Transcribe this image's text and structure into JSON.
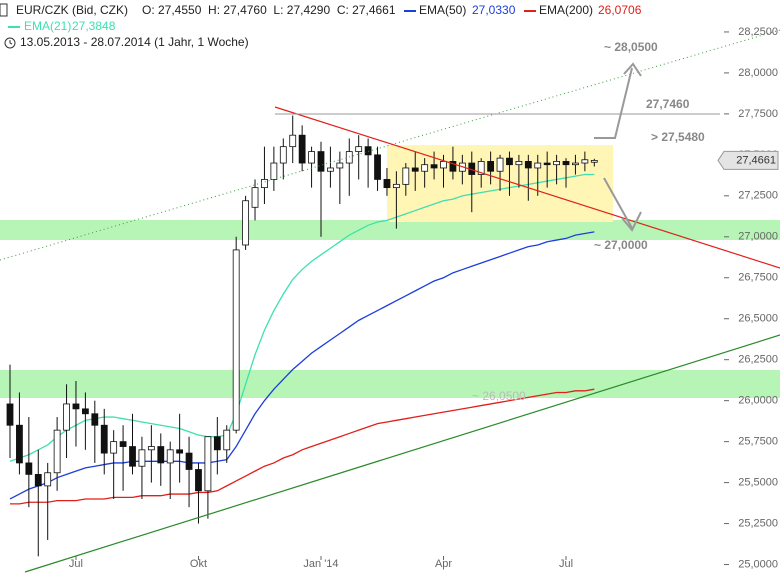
{
  "chart_data": {
    "type": "candlestick",
    "title": "EUR/CZK (Bid, CZK)",
    "ohlc_label": "O: 27,4550  H: 27,4760  L: 27,4290  C: 27,4661",
    "subtitle": "13.05.2013 - 28.07.2014 (1 Jahr, 1 Woche)",
    "categories": [
      null,
      null,
      null,
      null,
      null,
      null,
      null,
      "Jul",
      null,
      null,
      null,
      null,
      null,
      null,
      null,
      null,
      null,
      null,
      null,
      null,
      "Okt",
      null,
      null,
      null,
      null,
      null,
      null,
      null,
      null,
      null,
      null,
      null,
      null,
      "Jan '14",
      null,
      null,
      null,
      null,
      null,
      null,
      null,
      null,
      null,
      null,
      null,
      null,
      "Apr",
      null,
      null,
      null,
      null,
      null,
      null,
      null,
      null,
      null,
      null,
      null,
      null,
      "Jul",
      null,
      null,
      null
    ],
    "open": [
      25.98,
      25.85,
      25.62,
      25.55,
      25.48,
      25.56,
      25.82,
      25.98,
      25.95,
      25.92,
      25.85,
      25.68,
      25.75,
      25.72,
      25.6,
      25.7,
      25.72,
      25.62,
      25.7,
      25.68,
      25.58,
      25.45,
      25.78,
      25.7,
      25.82,
      26.95,
      27.18,
      27.3,
      27.35,
      27.45,
      27.55,
      27.62,
      27.45,
      27.52,
      27.4,
      27.42,
      27.45,
      27.52,
      27.55,
      27.5,
      27.35,
      27.3,
      27.32,
      27.42,
      27.4,
      27.44,
      27.42,
      27.46,
      27.4,
      27.45,
      27.38,
      27.46,
      27.4,
      27.48,
      27.44,
      27.46,
      27.42,
      27.45,
      27.44,
      27.46,
      27.44,
      27.45,
      27.455
    ],
    "high": [
      26.22,
      26.05,
      25.9,
      25.7,
      25.62,
      25.9,
      26.1,
      26.12,
      26.05,
      26.0,
      25.95,
      25.82,
      25.85,
      25.92,
      25.78,
      25.85,
      25.8,
      25.75,
      25.92,
      25.78,
      25.62,
      25.78,
      25.9,
      25.85,
      27.0,
      27.25,
      27.35,
      27.55,
      27.55,
      27.6,
      27.74,
      27.68,
      27.55,
      27.58,
      27.55,
      27.52,
      27.6,
      27.62,
      27.6,
      27.55,
      27.42,
      27.4,
      27.45,
      27.52,
      27.48,
      27.52,
      27.5,
      27.55,
      27.5,
      27.52,
      27.48,
      27.52,
      27.5,
      27.52,
      27.5,
      27.5,
      27.5,
      27.52,
      27.5,
      27.48,
      27.5,
      27.52,
      27.476
    ],
    "low": [
      25.65,
      25.55,
      25.35,
      25.05,
      25.15,
      25.45,
      25.65,
      25.72,
      25.7,
      25.62,
      25.55,
      25.4,
      25.45,
      25.55,
      25.4,
      25.5,
      25.48,
      25.4,
      25.5,
      25.35,
      25.25,
      25.28,
      25.55,
      25.62,
      25.8,
      26.92,
      27.1,
      27.2,
      27.28,
      27.35,
      27.45,
      27.4,
      27.3,
      27.0,
      27.3,
      27.2,
      27.25,
      27.35,
      27.3,
      27.28,
      27.25,
      27.05,
      27.25,
      27.28,
      27.3,
      27.35,
      27.3,
      27.35,
      27.32,
      27.15,
      27.3,
      27.32,
      27.28,
      27.25,
      27.3,
      27.22,
      27.25,
      27.3,
      27.32,
      27.3,
      27.38,
      27.4,
      27.429
    ],
    "close": [
      25.85,
      25.62,
      25.55,
      25.48,
      25.56,
      25.82,
      25.98,
      25.95,
      25.92,
      25.85,
      25.68,
      25.75,
      25.72,
      25.6,
      25.7,
      25.72,
      25.62,
      25.7,
      25.68,
      25.58,
      25.45,
      25.78,
      25.7,
      25.82,
      26.92,
      27.22,
      27.3,
      27.35,
      27.45,
      27.55,
      27.62,
      27.45,
      27.52,
      27.4,
      27.42,
      27.45,
      27.52,
      27.55,
      27.5,
      27.35,
      27.3,
      27.32,
      27.42,
      27.4,
      27.44,
      27.42,
      27.46,
      27.4,
      27.45,
      27.38,
      27.46,
      27.4,
      27.48,
      27.44,
      27.46,
      27.42,
      27.45,
      27.44,
      27.46,
      27.44,
      27.45,
      27.47,
      27.4661
    ],
    "last_price_label": "27,4661",
    "series": [
      {
        "name": "EMA(21)",
        "legend_value": "27,3848",
        "color": "#3fe0b0",
        "values": [
          25.63,
          25.65,
          25.67,
          25.7,
          25.73,
          25.78,
          25.82,
          25.85,
          25.88,
          25.89,
          25.9,
          25.9,
          25.89,
          25.88,
          25.87,
          25.86,
          25.85,
          25.84,
          25.83,
          25.81,
          25.79,
          25.78,
          25.78,
          25.79,
          25.92,
          26.1,
          26.28,
          26.43,
          26.55,
          26.65,
          26.74,
          26.8,
          26.85,
          26.89,
          26.93,
          26.97,
          27.01,
          27.04,
          27.07,
          27.09,
          27.1,
          27.12,
          27.14,
          27.16,
          27.18,
          27.2,
          27.22,
          27.23,
          27.25,
          27.26,
          27.27,
          27.28,
          27.29,
          27.3,
          27.31,
          27.32,
          27.33,
          27.34,
          27.35,
          27.36,
          27.37,
          27.38,
          27.38
        ]
      },
      {
        "name": "EMA(50)",
        "legend_value": "27,0330",
        "color": "#1c3fd8",
        "values": [
          25.4,
          25.43,
          25.46,
          25.48,
          25.5,
          25.53,
          25.55,
          25.57,
          25.59,
          25.6,
          25.61,
          25.62,
          25.62,
          25.63,
          25.63,
          25.63,
          25.63,
          25.63,
          25.63,
          25.62,
          25.62,
          25.62,
          25.63,
          25.64,
          25.72,
          25.82,
          25.92,
          26.0,
          26.07,
          26.13,
          26.19,
          26.24,
          26.29,
          26.33,
          26.37,
          26.41,
          26.45,
          26.49,
          26.52,
          26.55,
          26.58,
          26.61,
          26.64,
          26.67,
          26.7,
          26.73,
          26.75,
          26.78,
          26.8,
          26.82,
          26.84,
          26.86,
          26.88,
          26.9,
          26.92,
          26.94,
          26.95,
          26.97,
          26.98,
          26.99,
          27.01,
          27.02,
          27.03
        ]
      },
      {
        "name": "EMA(200)",
        "legend_value": "26,0706",
        "color": "#e0201a",
        "values": [
          25.37,
          25.37,
          25.38,
          25.38,
          25.38,
          25.39,
          25.39,
          25.39,
          25.4,
          25.4,
          25.4,
          25.41,
          25.41,
          25.41,
          25.42,
          25.42,
          25.42,
          25.43,
          25.43,
          25.43,
          25.44,
          25.44,
          25.45,
          25.48,
          25.51,
          25.54,
          25.57,
          25.6,
          25.62,
          25.65,
          25.67,
          25.7,
          25.72,
          25.74,
          25.76,
          25.78,
          25.8,
          25.82,
          25.84,
          25.86,
          25.87,
          25.88,
          25.89,
          25.9,
          25.91,
          25.92,
          25.93,
          25.94,
          25.95,
          25.96,
          25.97,
          25.98,
          25.99,
          26.0,
          26.01,
          26.02,
          26.03,
          26.04,
          26.05,
          26.05,
          26.06,
          26.06,
          26.07
        ]
      }
    ],
    "annotations": [
      "~ 28,0500",
      "27,7460",
      "> 27,5480",
      "~ 27,0000",
      "~ 26,0500"
    ],
    "ylim": [
      24.93,
      28.445
    ],
    "yticks": [
      {
        "value": 25,
        "label": "25,0000"
      },
      {
        "value": 25.25,
        "label": "25,2500"
      },
      {
        "value": 25.5,
        "label": "25,5000"
      },
      {
        "value": 25.75,
        "label": "25,7500"
      },
      {
        "value": 26,
        "label": "26,0000"
      },
      {
        "value": 26.25,
        "label": "26,2500"
      },
      {
        "value": 26.5,
        "label": "26,5000"
      },
      {
        "value": 26.75,
        "label": "26,7500"
      },
      {
        "value": 27,
        "label": "27,0000"
      },
      {
        "value": 27.25,
        "label": "27,2500"
      },
      {
        "value": 27.5,
        "label": "27,5000"
      },
      {
        "value": 27.75,
        "label": "27,7500"
      },
      {
        "value": 28,
        "label": "28,0000"
      },
      {
        "value": 28.25,
        "label": "28,2500"
      }
    ],
    "grid": false
  }
}
